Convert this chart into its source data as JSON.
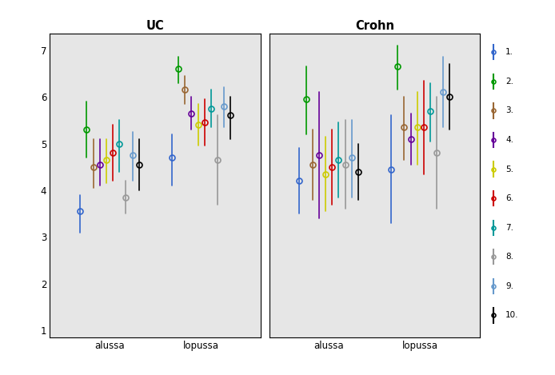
{
  "colors": [
    "#3366cc",
    "#009900",
    "#996633",
    "#660099",
    "#cccc00",
    "#cc0000",
    "#009999",
    "#999999",
    "#6699cc",
    "#000000"
  ],
  "legend_labels": [
    "1.",
    "2.",
    "3.",
    "4.",
    "5.",
    "6.",
    "7.",
    "8.",
    "9.",
    "10."
  ],
  "uc": {
    "title": "UC",
    "alussa": {
      "means": [
        3.55,
        5.3,
        4.5,
        4.55,
        4.65,
        4.8,
        5.0,
        3.85,
        4.75,
        4.55
      ],
      "lows": [
        3.1,
        4.7,
        4.05,
        4.1,
        4.15,
        4.2,
        4.4,
        3.5,
        4.2,
        4.0
      ],
      "highs": [
        3.9,
        5.9,
        5.1,
        5.1,
        5.1,
        5.4,
        5.5,
        4.2,
        5.25,
        5.1
      ]
    },
    "lopussa": {
      "means": [
        4.7,
        6.6,
        6.15,
        5.65,
        5.4,
        5.45,
        5.75,
        4.65,
        5.8,
        5.6
      ],
      "lows": [
        4.1,
        6.3,
        5.85,
        5.3,
        4.95,
        4.95,
        5.35,
        3.7,
        5.35,
        5.1
      ],
      "highs": [
        5.2,
        6.85,
        6.45,
        6.0,
        5.85,
        5.95,
        6.15,
        5.6,
        6.2,
        6.0
      ]
    }
  },
  "crohn": {
    "title": "Crohn",
    "alussa": {
      "means": [
        4.2,
        5.95,
        4.55,
        4.75,
        4.35,
        4.5,
        4.65,
        4.55,
        4.7,
        4.4
      ],
      "lows": [
        3.5,
        5.2,
        3.8,
        3.4,
        3.55,
        3.7,
        3.85,
        3.6,
        3.85,
        3.8
      ],
      "highs": [
        4.9,
        6.65,
        5.3,
        6.1,
        5.15,
        5.3,
        5.45,
        5.5,
        5.5,
        5.0
      ]
    },
    "lopussa": {
      "means": [
        4.45,
        6.65,
        5.35,
        5.1,
        5.35,
        5.35,
        5.7,
        4.8,
        6.1,
        6.0
      ],
      "lows": [
        3.3,
        6.15,
        4.65,
        4.55,
        4.55,
        4.35,
        5.05,
        3.6,
        5.35,
        5.3
      ],
      "highs": [
        5.6,
        7.1,
        6.0,
        5.65,
        6.1,
        6.35,
        6.3,
        6.0,
        6.85,
        6.7
      ]
    }
  },
  "ylim": [
    0.85,
    7.35
  ],
  "yticks": [
    1,
    2,
    3,
    4,
    5,
    6,
    7
  ],
  "bg_color": "#e6e6e6",
  "fig_bg": "#ffffff"
}
